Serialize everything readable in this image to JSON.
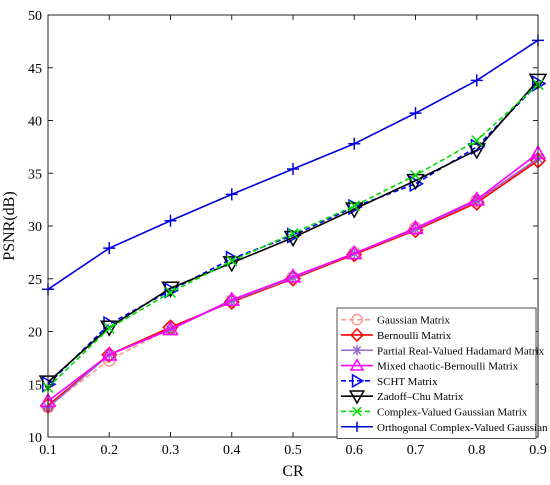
{
  "chart_data": {
    "type": "line",
    "title": "",
    "xlabel": "CR",
    "ylabel": "PSNR(dB)",
    "xlim": [
      0.1,
      0.9
    ],
    "ylim": [
      10,
      50
    ],
    "xticks": [
      "0.1",
      "0.2",
      "0.3",
      "0.4",
      "0.5",
      "0.6",
      "0.7",
      "0.8",
      "0.9"
    ],
    "yticks": [
      "10",
      "15",
      "20",
      "25",
      "30",
      "35",
      "40",
      "45",
      "50"
    ],
    "grid": false,
    "legend_position": "bottom-right",
    "x": [
      0.1,
      0.2,
      0.3,
      0.4,
      0.5,
      0.6,
      0.7,
      0.8,
      0.9
    ],
    "series": [
      {
        "name": "Gaussian Matrix",
        "color": "#ff9999",
        "dash": "dashed",
        "marker": "circle",
        "values": [
          12.9,
          17.3,
          20.3,
          22.9,
          25.1,
          27.4,
          29.8,
          32.4,
          36.3
        ]
      },
      {
        "name": "Bernoulli Matrix",
        "color": "#ff0000",
        "dash": "solid",
        "marker": "diamond",
        "values": [
          13.0,
          17.8,
          20.4,
          22.8,
          25.0,
          27.3,
          29.6,
          32.2,
          36.2
        ]
      },
      {
        "name": "Partial Real-Valued Hadamard Matrix",
        "color": "#9966cc",
        "dash": "solid",
        "marker": "asterisk",
        "values": [
          12.8,
          17.8,
          20.2,
          22.9,
          25.1,
          27.4,
          29.7,
          32.4,
          36.4
        ]
      },
      {
        "name": "Mixed chaotic-Bernoulli Matrix",
        "color": "#ff00ff",
        "dash": "solid",
        "marker": "triangle-up",
        "values": [
          13.4,
          17.8,
          20.2,
          23.0,
          25.2,
          27.4,
          29.8,
          32.5,
          36.9
        ]
      },
      {
        "name": "SCHT Matrix",
        "color": "#0000ff",
        "dash": "dashed",
        "marker": "triangle-right",
        "values": [
          15.0,
          20.7,
          23.9,
          26.9,
          29.1,
          31.8,
          34.0,
          37.5,
          43.5
        ]
      },
      {
        "name": "Zadoff–Chu Matrix",
        "color": "#000000",
        "dash": "solid",
        "marker": "triangle-down",
        "values": [
          15.2,
          20.4,
          24.1,
          26.5,
          28.9,
          31.6,
          34.3,
          37.2,
          43.8
        ]
      },
      {
        "name": "Complex-Valued Gaussian Matrix",
        "color": "#00dd00",
        "dash": "dashed",
        "marker": "x",
        "values": [
          14.7,
          20.3,
          23.7,
          26.7,
          29.3,
          31.9,
          34.8,
          38.1,
          43.4
        ]
      },
      {
        "name": "Orthogonal Complex-Valued Gaussian Matrix",
        "color": "#0000dd",
        "dash": "solid",
        "marker": "plus",
        "values": [
          24.0,
          27.9,
          30.5,
          33.0,
          35.4,
          37.8,
          40.7,
          43.8,
          47.6
        ]
      }
    ]
  }
}
